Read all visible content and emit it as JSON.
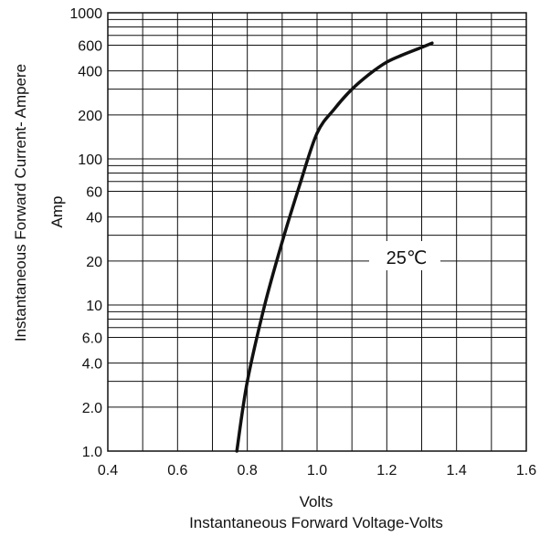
{
  "chart_data": {
    "type": "line",
    "title": "",
    "xlabel": "Volts",
    "xlabel_secondary": "Instantaneous Forward Voltage-Volts",
    "ylabel": "Instantaneous Forward Current- Ampere",
    "ylabel_secondary": "Amp",
    "x_scale": "linear",
    "y_scale": "log",
    "xlim": [
      0.4,
      1.6
    ],
    "ylim": [
      1,
      1000
    ],
    "x_ticks": [
      "0.4",
      "0.6",
      "0.8",
      "1.0",
      "1.2",
      "1.4",
      "1.6"
    ],
    "y_ticks": [
      "1.0",
      "2.0",
      "4.0",
      "6.0",
      "10",
      "20",
      "40",
      "60",
      "100",
      "200",
      "400",
      "600",
      "1000"
    ],
    "grid": true,
    "annotation": "25℃",
    "series": [
      {
        "name": "",
        "x": [
          0.77,
          0.8,
          0.85,
          0.9,
          0.95,
          1.0,
          1.05,
          1.1,
          1.15,
          1.2,
          1.25,
          1.3,
          1.33
        ],
        "y": [
          1.0,
          3.0,
          10.0,
          27.0,
          66.0,
          150.0,
          220.0,
          300.0,
          380.0,
          460.0,
          520.0,
          580.0,
          620.0
        ]
      }
    ]
  },
  "colors": {
    "line": "#111111",
    "grid": "#111111",
    "background": "#ffffff"
  }
}
